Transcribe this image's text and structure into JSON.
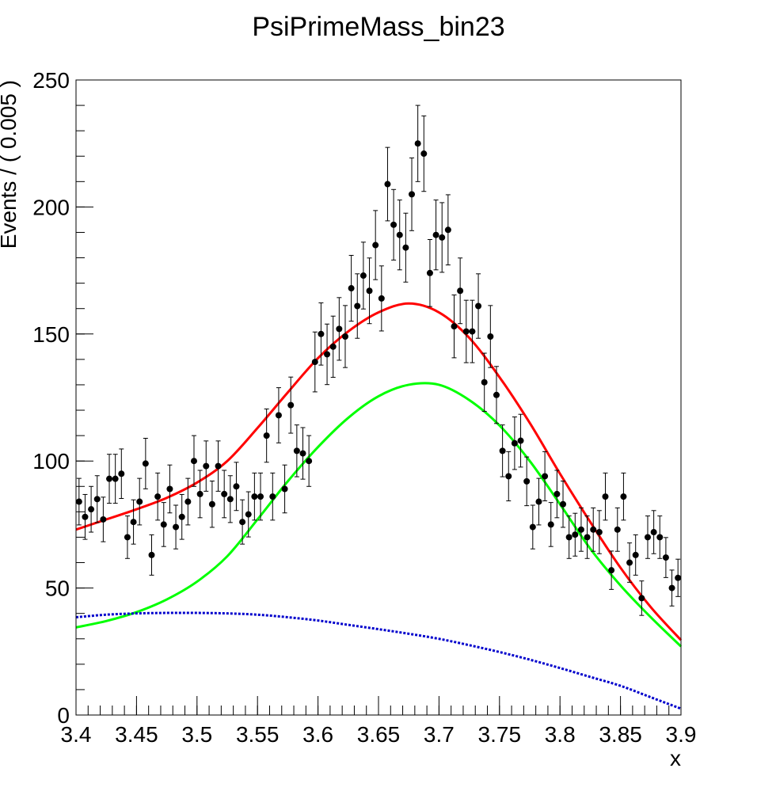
{
  "chart_data": {
    "type": "scatter",
    "title": "PsiPrimeMass_bin23",
    "xlabel": "x",
    "ylabel": "Events / ( 0.005 )",
    "xlim": [
      3.4,
      3.9
    ],
    "ylim": [
      0,
      250
    ],
    "x_ticks": [
      "3.4",
      "3.45",
      "3.5",
      "3.55",
      "3.6",
      "3.65",
      "3.7",
      "3.75",
      "3.8",
      "3.85",
      "3.9"
    ],
    "y_ticks": [
      "0",
      "50",
      "100",
      "150",
      "200",
      "250"
    ],
    "grid": false,
    "legend": "none",
    "series": [
      {
        "kind": "points_with_errors",
        "color": "#000000",
        "x": [
          3.4025,
          3.4075,
          3.4125,
          3.4175,
          3.4225,
          3.4275,
          3.4325,
          3.4375,
          3.4425,
          3.4475,
          3.4525,
          3.4575,
          3.4625,
          3.4675,
          3.4725,
          3.4775,
          3.4825,
          3.4875,
          3.4925,
          3.4975,
          3.5025,
          3.5075,
          3.5125,
          3.5175,
          3.5225,
          3.5275,
          3.5325,
          3.5375,
          3.5425,
          3.5475,
          3.5525,
          3.5575,
          3.5625,
          3.5675,
          3.5725,
          3.5775,
          3.5825,
          3.5875,
          3.5925,
          3.5975,
          3.6025,
          3.6075,
          3.6125,
          3.6175,
          3.6225,
          3.6275,
          3.6325,
          3.6375,
          3.6425,
          3.6475,
          3.6525,
          3.6575,
          3.6625,
          3.6675,
          3.6725,
          3.6775,
          3.6825,
          3.6875,
          3.6925,
          3.6975,
          3.7025,
          3.7075,
          3.7125,
          3.7175,
          3.7225,
          3.7275,
          3.7325,
          3.7375,
          3.7425,
          3.7475,
          3.7525,
          3.7575,
          3.7625,
          3.7675,
          3.7725,
          3.7775,
          3.7825,
          3.7875,
          3.7925,
          3.7975,
          3.8025,
          3.8075,
          3.8125,
          3.8175,
          3.8225,
          3.8275,
          3.8325,
          3.8375,
          3.8425,
          3.8475,
          3.8525,
          3.8575,
          3.8625,
          3.8675,
          3.8725,
          3.8775,
          3.8825,
          3.8875,
          3.8925,
          3.8975
        ],
        "y": [
          84,
          78,
          81,
          85,
          77,
          93,
          93,
          95,
          70,
          76,
          84,
          99,
          63,
          86,
          75,
          89,
          74,
          78,
          84,
          100,
          87,
          98,
          83,
          98,
          87,
          85,
          90,
          76,
          79,
          86,
          86,
          110,
          86,
          118,
          89,
          122,
          104,
          103,
          100,
          139,
          150,
          142,
          145,
          152,
          149,
          168,
          161,
          173,
          167,
          185,
          164,
          209,
          193,
          189,
          184,
          205,
          225,
          221,
          174,
          189,
          188,
          191,
          153,
          167,
          151,
          151,
          161,
          131,
          149,
          126,
          104,
          94,
          107,
          108,
          92,
          74,
          84,
          94,
          75,
          87,
          83,
          70,
          71,
          73,
          70,
          73,
          72,
          86,
          57,
          73,
          86,
          60,
          63,
          46,
          70,
          72,
          70,
          62,
          50,
          54
        ]
      },
      {
        "kind": "curve",
        "name": "",
        "color": "#ff0000",
        "x": [
          3.4,
          3.425,
          3.45,
          3.475,
          3.5,
          3.525,
          3.55,
          3.575,
          3.6,
          3.625,
          3.65,
          3.675,
          3.7,
          3.725,
          3.75,
          3.775,
          3.8,
          3.825,
          3.85,
          3.875,
          3.9
        ],
        "y": [
          73,
          77,
          81,
          85.5,
          91.5,
          100,
          113,
          127,
          140.5,
          151,
          158.5,
          162,
          158.5,
          148.5,
          133,
          115,
          95,
          76,
          58,
          42.5,
          29.5
        ]
      },
      {
        "kind": "curve",
        "name": "",
        "color": "#00ff00",
        "x": [
          3.4,
          3.425,
          3.45,
          3.475,
          3.5,
          3.525,
          3.55,
          3.575,
          3.6,
          3.625,
          3.65,
          3.675,
          3.7,
          3.725,
          3.75,
          3.775,
          3.8,
          3.825,
          3.85,
          3.875,
          3.9
        ],
        "y": [
          34.5,
          37,
          40.5,
          45.5,
          52.5,
          62.5,
          77,
          92,
          105.5,
          117,
          125.5,
          130,
          130,
          124,
          114,
          100,
          83,
          65.5,
          51,
          38.5,
          27
        ]
      },
      {
        "kind": "curve",
        "name": "",
        "color": "#0000cc",
        "dashed": true,
        "x": [
          3.4,
          3.425,
          3.45,
          3.475,
          3.5,
          3.525,
          3.55,
          3.575,
          3.6,
          3.625,
          3.65,
          3.675,
          3.7,
          3.725,
          3.75,
          3.775,
          3.8,
          3.825,
          3.85,
          3.875,
          3.9
        ],
        "y": [
          38.5,
          39.5,
          40,
          40.2,
          40.2,
          40,
          39.5,
          38.5,
          37.2,
          35.5,
          33.8,
          32,
          30,
          27.5,
          24.8,
          21.8,
          18.5,
          15,
          11.5,
          7,
          2.5
        ]
      }
    ]
  }
}
